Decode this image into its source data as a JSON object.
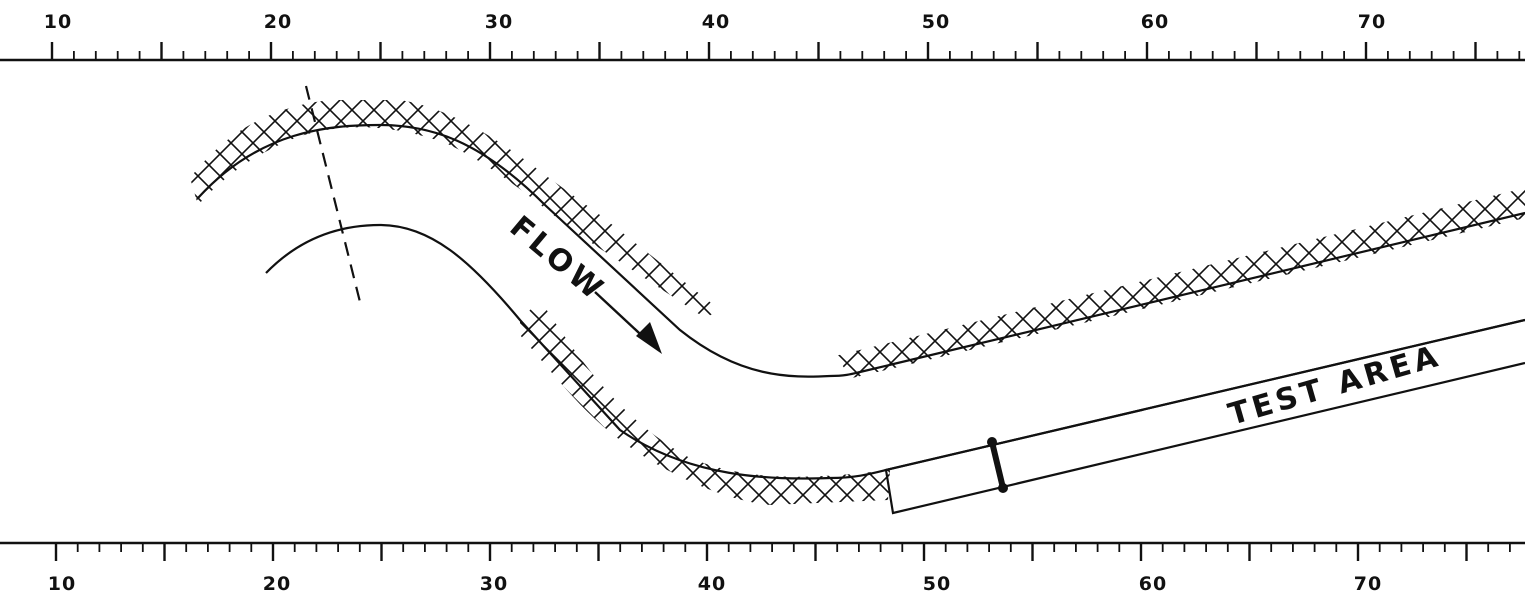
{
  "scales": {
    "top": {
      "labels": [
        "10",
        "20",
        "30",
        "40",
        "50",
        "60",
        "70"
      ]
    },
    "bottom": {
      "labels": [
        "10",
        "20",
        "30",
        "40",
        "50",
        "60",
        "70"
      ]
    }
  },
  "labels": {
    "flow": "FLOW",
    "test_area": "TEST AREA"
  },
  "colors": {
    "ink": "#111111",
    "paper": "#ffffff"
  }
}
